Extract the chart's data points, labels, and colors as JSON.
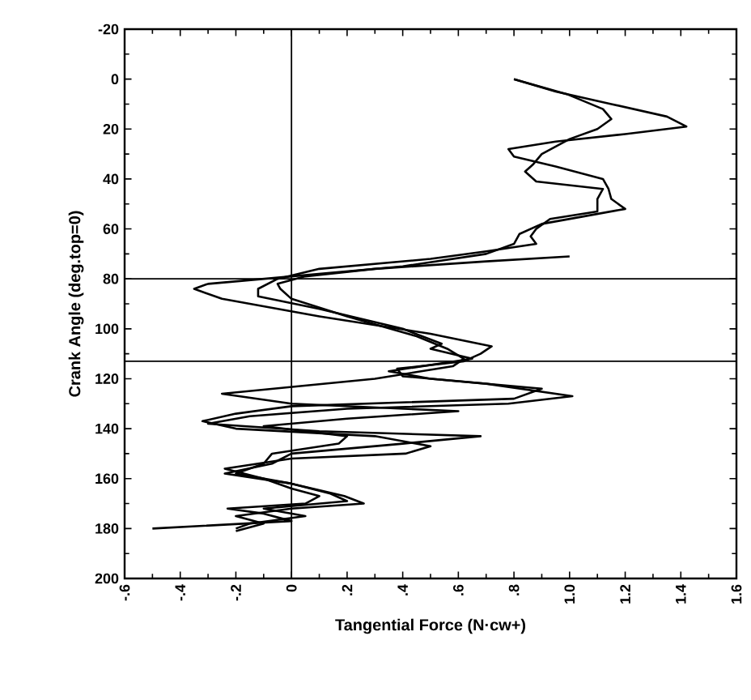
{
  "chart_data": {
    "type": "line",
    "xlabel": "Tangential Force  (N·cw+)",
    "ylabel": "Crank Angle  (deg.top=0)",
    "xlim": [
      -0.6,
      1.6
    ],
    "ylim": [
      200,
      -20
    ],
    "xticks": [
      {
        "value": -0.6,
        "label": "-.6"
      },
      {
        "value": -0.4,
        "label": "-.4"
      },
      {
        "value": -0.2,
        "label": "-.2"
      },
      0,
      {
        "value": 0.2,
        "label": ".2"
      },
      {
        "value": 0.4,
        "label": ".4"
      },
      {
        "value": 0.6,
        "label": ".6"
      },
      {
        "value": 0.8,
        "label": ".8"
      },
      {
        "value": 1.0,
        "label": "1.0"
      },
      {
        "value": 1.2,
        "label": "1.2"
      },
      {
        "value": 1.4,
        "label": "1.4"
      },
      {
        "value": 1.6,
        "label": "1.6"
      }
    ],
    "yticks": [
      -20,
      0,
      20,
      40,
      60,
      80,
      100,
      120,
      140,
      160,
      180,
      200
    ],
    "marker": "none",
    "line_style": "solid",
    "ref_lines": [
      {
        "axis": "x",
        "value": 0,
        "color": "#000000"
      },
      {
        "axis": "y",
        "value": 80,
        "color": "#000000"
      },
      {
        "axis": "y",
        "value": 113,
        "color": "#000000"
      }
    ],
    "series": [
      {
        "color": "#000000",
        "x": [
          0.8,
          0.95,
          1.15,
          1.35,
          1.42,
          1.2,
          0.95,
          0.78,
          0.8,
          0.95,
          1.12,
          1.14,
          1.15,
          1.2,
          1.05,
          0.9,
          0.82,
          0.8,
          0.7,
          0.4,
          0.0,
          -0.3,
          -0.35,
          -0.25,
          0.1,
          0.5,
          0.72,
          0.68,
          0.62,
          0.38,
          0.4,
          0.7,
          1.01,
          0.78,
          0.2,
          -0.15,
          -0.3,
          0.1,
          0.68,
          0.4,
          0.0,
          -0.07,
          -0.24,
          0.0,
          0.19,
          0.26,
          0.0,
          -0.2,
          -0.1,
          -0.2
        ],
        "values": [
          0,
          5,
          10,
          15,
          19,
          22,
          25,
          28,
          31,
          35,
          40,
          44,
          48,
          52,
          55,
          58,
          62,
          66,
          70,
          75,
          79,
          82,
          84,
          88,
          95,
          102,
          107,
          110,
          113,
          116,
          119,
          122,
          127,
          130,
          132,
          135,
          138,
          141,
          143,
          146,
          150,
          154,
          158,
          162,
          167,
          170,
          172,
          175,
          178,
          181
        ]
      },
      {
        "color": "#000000",
        "x": [
          0.8,
          0.99,
          1.12,
          1.15,
          1.1,
          1.0,
          0.9,
          0.87,
          0.84,
          0.88,
          1.12,
          1.1,
          1.1,
          0.93,
          0.88,
          0.86,
          0.88,
          0.7,
          0.5,
          0.1,
          -0.05,
          -0.12,
          -0.12,
          0.1,
          0.4,
          0.54,
          0.5,
          0.65,
          0.35,
          0.5,
          0.9,
          0.8,
          0.0,
          -0.2,
          -0.32,
          -0.2,
          0.3,
          0.5,
          0.41,
          0.0,
          -0.24,
          -0.1,
          0.0,
          0.1,
          0.05,
          -0.23,
          -0.1,
          0.0,
          -0.5
        ],
        "values": [
          0,
          6,
          12,
          16,
          20,
          24,
          30,
          34,
          37,
          41,
          44,
          48,
          53,
          56,
          60,
          63,
          66,
          69,
          72,
          76,
          80,
          84,
          87,
          92,
          100,
          106,
          108,
          112,
          117,
          120,
          124,
          128,
          131,
          134,
          137,
          140,
          143,
          147,
          150,
          152,
          156,
          160,
          164,
          167,
          170,
          172,
          174,
          177,
          180
        ]
      },
      {
        "color": "#000000",
        "x": [
          1.0,
          0.7,
          0.3,
          0.05,
          -0.05,
          -0.04,
          0.0,
          0.2,
          0.45,
          0.56,
          0.62,
          0.58,
          0.3,
          -0.25,
          0.0,
          0.6,
          0.2,
          -0.1,
          0.2,
          0.17,
          -0.07,
          -0.1,
          -0.2,
          0.0,
          0.14,
          0.2,
          -0.1,
          0.05,
          -0.15,
          -0.2
        ],
        "values": [
          71,
          73,
          76,
          79,
          82,
          84,
          88,
          95,
          103,
          108,
          112,
          115,
          120,
          126,
          130,
          133,
          136,
          139,
          143,
          146,
          150,
          154,
          158,
          162,
          166,
          169,
          172,
          175,
          178,
          180
        ]
      }
    ]
  }
}
